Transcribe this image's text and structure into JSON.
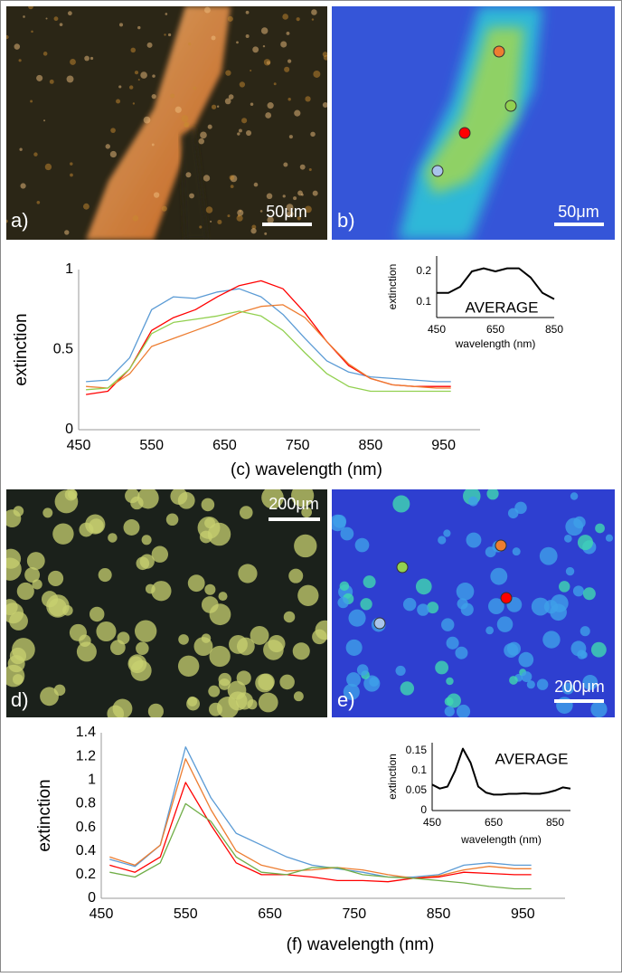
{
  "panels": [
    {
      "label": "a)",
      "scale_bar": "50μm"
    },
    {
      "label": "b)",
      "scale_bar": "50μm"
    },
    {
      "label": "d)",
      "scale_bar": "200μm"
    },
    {
      "label": "e)",
      "scale_bar": "200μm"
    }
  ],
  "chart_data": [
    {
      "type": "line",
      "ylabel": "extinction",
      "xlabel": "(c) wavelength (nm)",
      "x": [
        460,
        490,
        520,
        550,
        580,
        610,
        640,
        670,
        700,
        730,
        760,
        790,
        820,
        850,
        880,
        910,
        940,
        960
      ],
      "series": [
        {
          "color": "#5b9bd5",
          "values": [
            0.3,
            0.31,
            0.45,
            0.75,
            0.83,
            0.82,
            0.86,
            0.88,
            0.83,
            0.72,
            0.57,
            0.43,
            0.36,
            0.33,
            0.32,
            0.31,
            0.3,
            0.3
          ]
        },
        {
          "color": "#ff0000",
          "values": [
            0.22,
            0.24,
            0.38,
            0.62,
            0.7,
            0.75,
            0.83,
            0.9,
            0.93,
            0.88,
            0.73,
            0.55,
            0.4,
            0.32,
            0.28,
            0.27,
            0.27,
            0.27
          ]
        },
        {
          "color": "#ed7d31",
          "values": [
            0.27,
            0.26,
            0.35,
            0.52,
            0.57,
            0.62,
            0.67,
            0.73,
            0.77,
            0.78,
            0.7,
            0.55,
            0.41,
            0.32,
            0.28,
            0.27,
            0.26,
            0.26
          ]
        },
        {
          "color": "#92d050",
          "values": [
            0.25,
            0.26,
            0.38,
            0.6,
            0.67,
            0.69,
            0.71,
            0.74,
            0.71,
            0.62,
            0.48,
            0.35,
            0.27,
            0.24,
            0.24,
            0.24,
            0.24,
            0.24
          ]
        }
      ],
      "xlim": [
        450,
        1000
      ],
      "ylim": [
        0,
        1
      ],
      "xticks": [
        450,
        550,
        650,
        750,
        850,
        950
      ],
      "yticks": [
        0,
        0.5,
        1
      ]
    },
    {
      "type": "line",
      "ylabel": "extinction",
      "xlabel": "wavelength (nm)",
      "annotation": "AVERAGE",
      "x": [
        450,
        490,
        530,
        570,
        610,
        650,
        690,
        730,
        770,
        810,
        850
      ],
      "series": [
        {
          "color": "#000000",
          "values": [
            0.13,
            0.13,
            0.15,
            0.2,
            0.21,
            0.2,
            0.21,
            0.21,
            0.18,
            0.13,
            0.11
          ]
        }
      ],
      "xlim": [
        450,
        850
      ],
      "ylim": [
        0.05,
        0.25
      ],
      "xticks": [
        450,
        650,
        850
      ],
      "yticks": [
        0.1,
        0.2
      ]
    },
    {
      "type": "line",
      "ylabel": "extinction",
      "xlabel": "(f) wavelength (nm)",
      "x": [
        460,
        490,
        520,
        550,
        580,
        610,
        640,
        670,
        700,
        730,
        760,
        790,
        820,
        850,
        880,
        910,
        940,
        960
      ],
      "series": [
        {
          "color": "#5b9bd5",
          "values": [
            0.33,
            0.27,
            0.45,
            1.28,
            0.85,
            0.55,
            0.45,
            0.35,
            0.28,
            0.25,
            0.22,
            0.18,
            0.18,
            0.2,
            0.28,
            0.3,
            0.28,
            0.28
          ]
        },
        {
          "color": "#ed7d31",
          "values": [
            0.35,
            0.28,
            0.45,
            1.18,
            0.75,
            0.4,
            0.28,
            0.23,
            0.24,
            0.26,
            0.24,
            0.2,
            0.17,
            0.19,
            0.24,
            0.27,
            0.25,
            0.25
          ]
        },
        {
          "color": "#ff0000",
          "values": [
            0.28,
            0.22,
            0.35,
            0.98,
            0.62,
            0.3,
            0.2,
            0.2,
            0.18,
            0.15,
            0.15,
            0.14,
            0.17,
            0.18,
            0.22,
            0.21,
            0.2,
            0.2
          ]
        },
        {
          "color": "#70ad47",
          "values": [
            0.22,
            0.18,
            0.3,
            0.8,
            0.65,
            0.35,
            0.22,
            0.2,
            0.26,
            0.26,
            0.2,
            0.18,
            0.17,
            0.15,
            0.13,
            0.1,
            0.08,
            0.08
          ]
        }
      ],
      "xlim": [
        450,
        1000
      ],
      "ylim": [
        0,
        1.4
      ],
      "xticks": [
        450,
        550,
        650,
        750,
        850,
        950
      ],
      "yticks": [
        0,
        0.2,
        0.4,
        0.6,
        0.8,
        1,
        1.2,
        1.4
      ]
    },
    {
      "type": "line",
      "ylabel": "extinction",
      "xlabel": "wavelength (nm)",
      "annotation": "AVERAGE",
      "x": [
        450,
        475,
        500,
        525,
        550,
        575,
        600,
        625,
        650,
        675,
        700,
        725,
        750,
        775,
        800,
        825,
        850,
        875,
        900
      ],
      "series": [
        {
          "color": "#000000",
          "values": [
            0.065,
            0.055,
            0.06,
            0.1,
            0.155,
            0.12,
            0.06,
            0.045,
            0.04,
            0.04,
            0.042,
            0.042,
            0.043,
            0.042,
            0.042,
            0.045,
            0.05,
            0.058,
            0.055
          ]
        }
      ],
      "xlim": [
        450,
        900
      ],
      "ylim": [
        0,
        0.17
      ],
      "xticks": [
        450,
        650,
        850
      ],
      "yticks": [
        0,
        0.05,
        0.1,
        0.15
      ]
    }
  ]
}
